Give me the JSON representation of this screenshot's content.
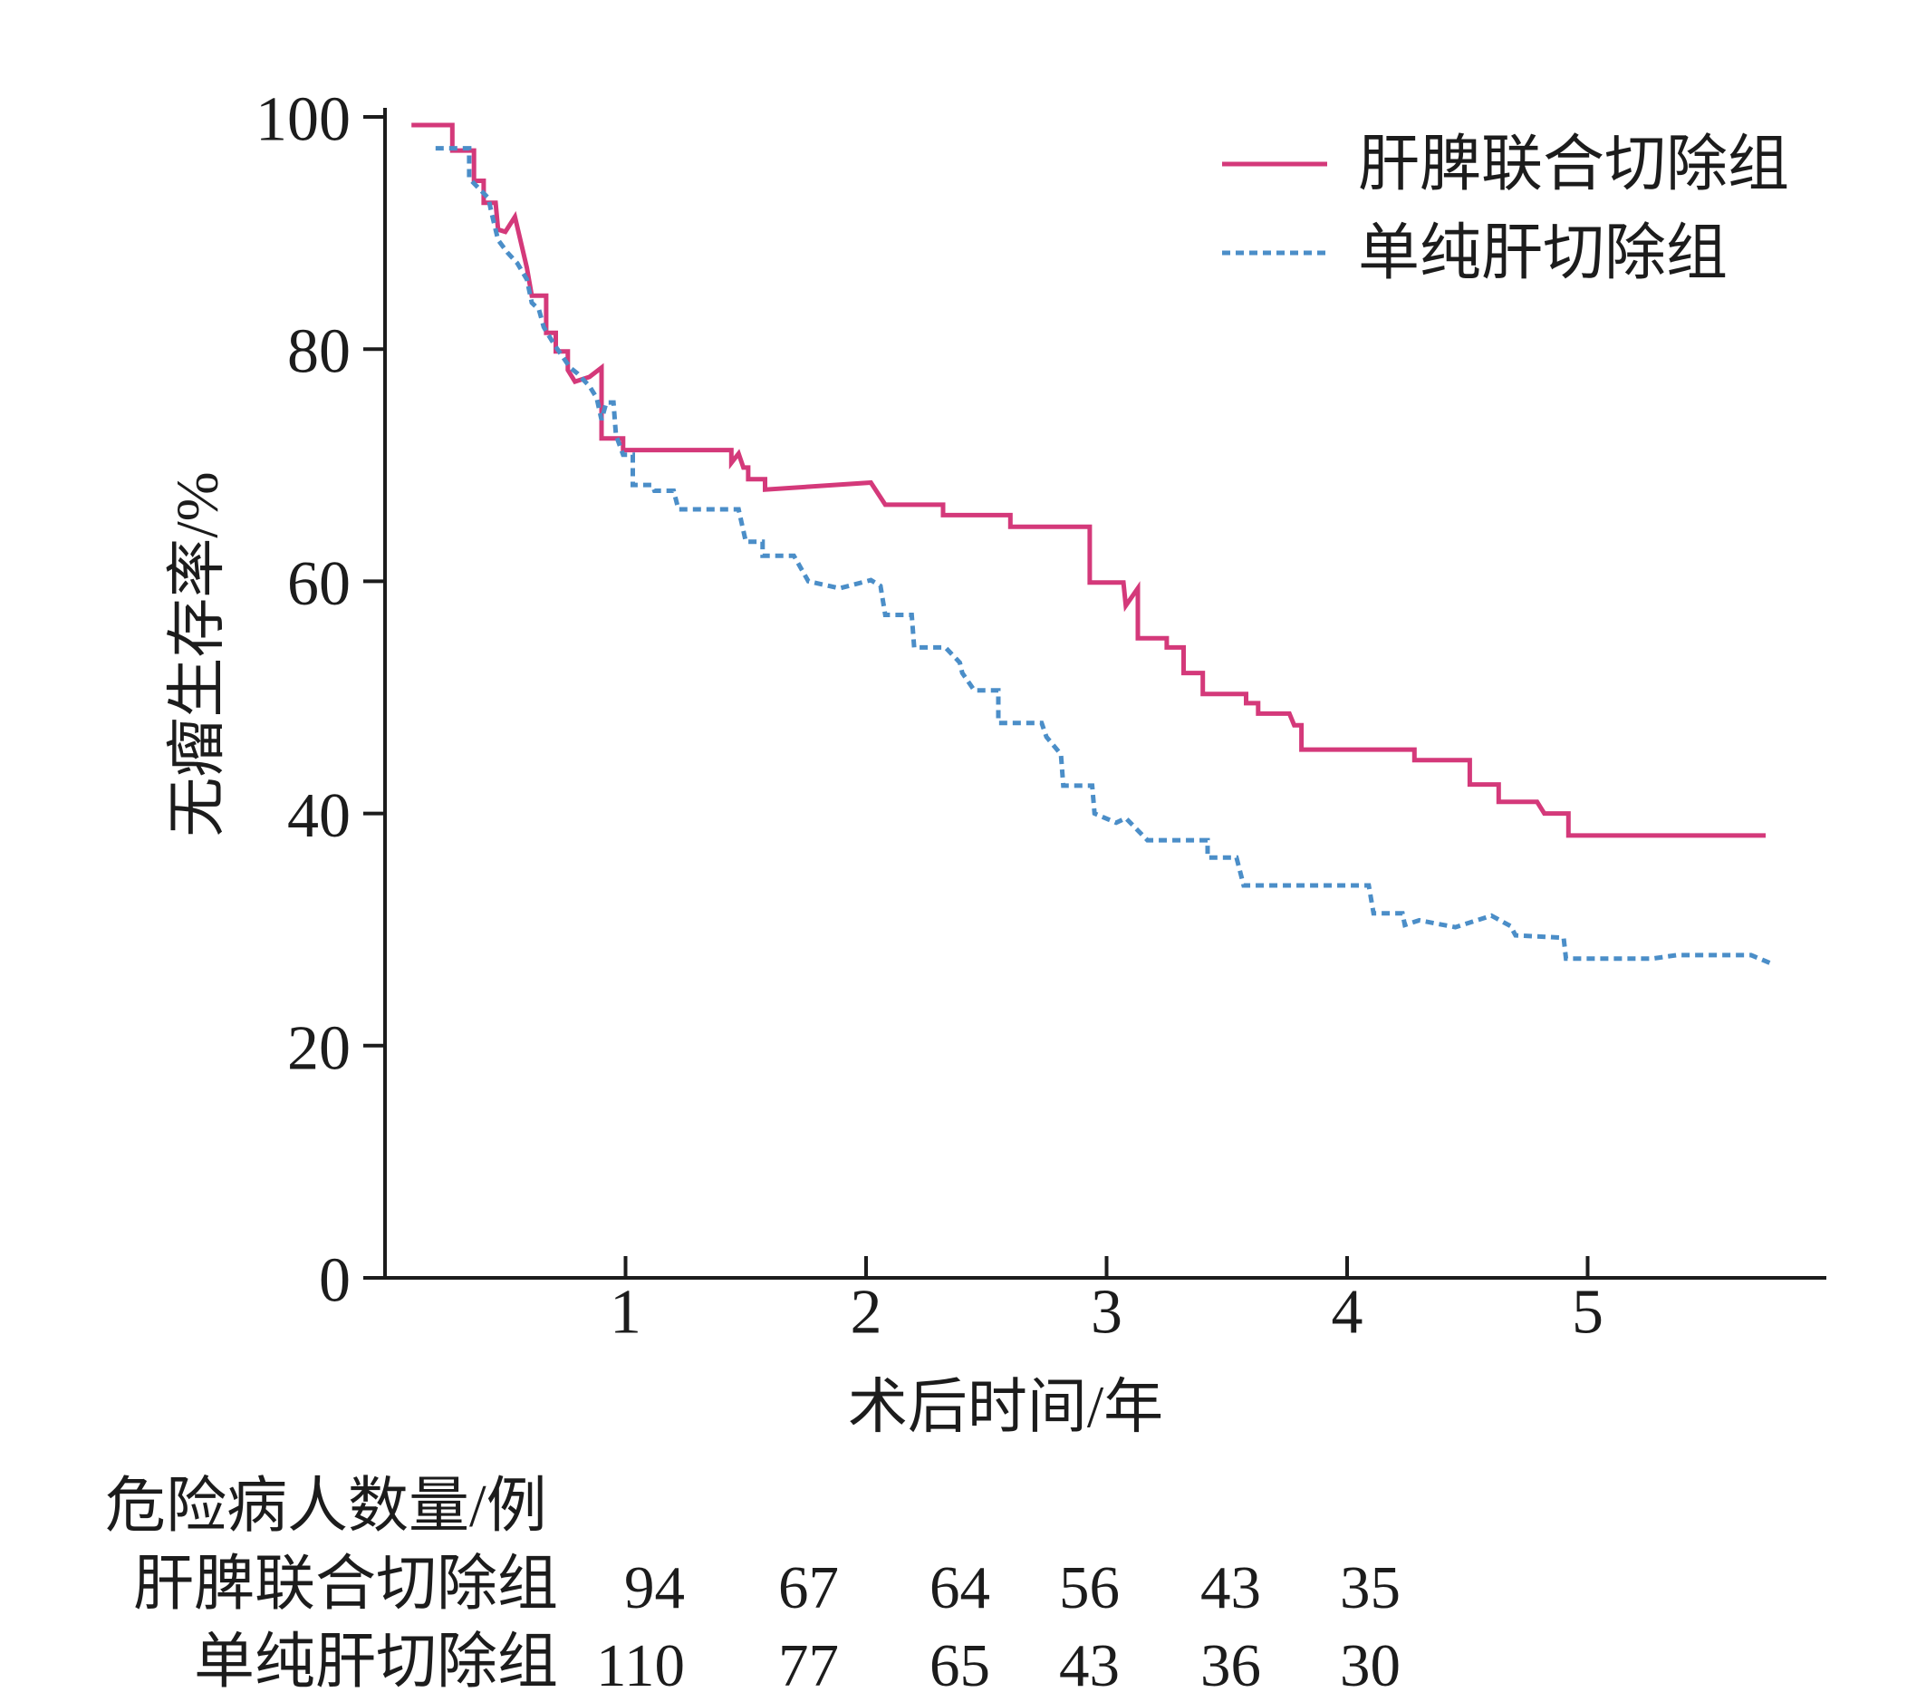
{
  "chart_data": {
    "type": "line",
    "xlabel": "术后时间/年",
    "ylabel": "无瘤生存率/%",
    "xlim": [
      0,
      6
    ],
    "ylim": [
      0,
      100
    ],
    "xticks": [
      1,
      2,
      3,
      4,
      5
    ],
    "yticks": [
      0,
      20,
      40,
      60,
      80,
      100
    ],
    "grid": false,
    "legend": "top-right",
    "series": [
      {
        "name": "肝脾联合切除组",
        "color": "#d4397a",
        "line_style": "solid",
        "points": [
          [
            0.11,
            99.3
          ],
          [
            0.28,
            99.3
          ],
          [
            0.28,
            97.1
          ],
          [
            0.37,
            97.1
          ],
          [
            0.37,
            94.5
          ],
          [
            0.41,
            94.5
          ],
          [
            0.41,
            92.6
          ],
          [
            0.46,
            92.6
          ],
          [
            0.47,
            90.3
          ],
          [
            0.5,
            90.1
          ],
          [
            0.54,
            91.4
          ],
          [
            0.59,
            87.0
          ],
          [
            0.61,
            84.6
          ],
          [
            0.67,
            84.6
          ],
          [
            0.67,
            81.4
          ],
          [
            0.71,
            81.4
          ],
          [
            0.71,
            79.8
          ],
          [
            0.76,
            79.8
          ],
          [
            0.76,
            78.2
          ],
          [
            0.79,
            77.2
          ],
          [
            0.85,
            77.6
          ],
          [
            0.9,
            78.4
          ],
          [
            0.9,
            72.3
          ],
          [
            0.99,
            72.3
          ],
          [
            0.99,
            71.3
          ],
          [
            1.44,
            71.3
          ],
          [
            1.44,
            70.2
          ],
          [
            1.47,
            71.0
          ],
          [
            1.49,
            69.8
          ],
          [
            1.51,
            69.8
          ],
          [
            1.51,
            68.8
          ],
          [
            1.58,
            68.8
          ],
          [
            1.58,
            67.9
          ],
          [
            2.02,
            68.5
          ],
          [
            2.08,
            66.6
          ],
          [
            2.32,
            66.6
          ],
          [
            2.32,
            65.7
          ],
          [
            2.6,
            65.7
          ],
          [
            2.6,
            64.7
          ],
          [
            2.93,
            64.7
          ],
          [
            2.93,
            59.9
          ],
          [
            3.07,
            59.9
          ],
          [
            3.08,
            57.9
          ],
          [
            3.13,
            59.4
          ],
          [
            3.13,
            55.1
          ],
          [
            3.25,
            55.1
          ],
          [
            3.25,
            54.3
          ],
          [
            3.32,
            54.3
          ],
          [
            3.32,
            52.1
          ],
          [
            3.4,
            52.1
          ],
          [
            3.4,
            50.3
          ],
          [
            3.58,
            50.3
          ],
          [
            3.58,
            49.5
          ],
          [
            3.63,
            49.5
          ],
          [
            3.63,
            48.6
          ],
          [
            3.76,
            48.6
          ],
          [
            3.78,
            47.6
          ],
          [
            3.81,
            47.6
          ],
          [
            3.81,
            45.5
          ],
          [
            4.28,
            45.5
          ],
          [
            4.28,
            44.6
          ],
          [
            4.51,
            44.6
          ],
          [
            4.51,
            42.5
          ],
          [
            4.63,
            42.5
          ],
          [
            4.63,
            41.0
          ],
          [
            4.79,
            41.0
          ],
          [
            4.82,
            40.0
          ],
          [
            4.92,
            40.0
          ],
          [
            4.92,
            38.1
          ],
          [
            5.74,
            38.1
          ]
        ]
      },
      {
        "name": "单纯肝切除组",
        "color": "#4b8ec8",
        "line_style": "dotted",
        "points": [
          [
            0.21,
            97.3
          ],
          [
            0.35,
            97.3
          ],
          [
            0.35,
            94.7
          ],
          [
            0.43,
            93.0
          ],
          [
            0.44,
            92.0
          ],
          [
            0.47,
            89.4
          ],
          [
            0.51,
            88.3
          ],
          [
            0.55,
            87.4
          ],
          [
            0.59,
            86.0
          ],
          [
            0.61,
            84.0
          ],
          [
            0.64,
            83.4
          ],
          [
            0.66,
            81.9
          ],
          [
            0.7,
            80.5
          ],
          [
            0.73,
            79.6
          ],
          [
            0.77,
            78.4
          ],
          [
            0.8,
            77.9
          ],
          [
            0.85,
            76.8
          ],
          [
            0.88,
            75.8
          ],
          [
            0.9,
            73.9
          ],
          [
            0.92,
            75.4
          ],
          [
            0.95,
            75.4
          ],
          [
            0.96,
            72.6
          ],
          [
            0.99,
            70.9
          ],
          [
            1.03,
            70.9
          ],
          [
            1.03,
            68.3
          ],
          [
            1.11,
            68.3
          ],
          [
            1.12,
            67.8
          ],
          [
            1.2,
            67.8
          ],
          [
            1.22,
            66.2
          ],
          [
            1.47,
            66.2
          ],
          [
            1.5,
            63.4
          ],
          [
            1.57,
            63.4
          ],
          [
            1.57,
            62.2
          ],
          [
            1.7,
            62.2
          ],
          [
            1.76,
            60.0
          ],
          [
            1.89,
            59.4
          ],
          [
            2.02,
            60.1
          ],
          [
            2.06,
            59.6
          ],
          [
            2.08,
            57.1
          ],
          [
            2.19,
            57.1
          ],
          [
            2.2,
            54.3
          ],
          [
            2.33,
            54.3
          ],
          [
            2.39,
            53.0
          ],
          [
            2.4,
            52.1
          ],
          [
            2.45,
            50.6
          ],
          [
            2.55,
            50.6
          ],
          [
            2.55,
            47.8
          ],
          [
            2.73,
            47.8
          ],
          [
            2.75,
            46.6
          ],
          [
            2.81,
            45.1
          ],
          [
            2.82,
            42.4
          ],
          [
            2.94,
            42.4
          ],
          [
            2.95,
            40.0
          ],
          [
            3.04,
            39.2
          ],
          [
            3.08,
            39.6
          ],
          [
            3.17,
            37.7
          ],
          [
            3.42,
            37.7
          ],
          [
            3.42,
            36.2
          ],
          [
            3.54,
            36.2
          ],
          [
            3.57,
            33.8
          ],
          [
            4.09,
            33.8
          ],
          [
            4.11,
            31.4
          ],
          [
            4.23,
            31.4
          ],
          [
            4.24,
            30.4
          ],
          [
            4.3,
            30.8
          ],
          [
            4.45,
            30.2
          ],
          [
            4.6,
            31.2
          ],
          [
            4.68,
            30.3
          ],
          [
            4.7,
            29.5
          ],
          [
            4.9,
            29.3
          ],
          [
            4.91,
            27.5
          ],
          [
            5.27,
            27.5
          ],
          [
            5.37,
            27.8
          ],
          [
            5.68,
            27.8
          ],
          [
            5.76,
            27.1
          ]
        ]
      }
    ]
  },
  "risk_table": {
    "title": "危险病人数量/例",
    "rows": [
      {
        "label": "肝脾联合切除组",
        "counts": [
          94,
          67,
          64,
          56,
          43,
          35
        ]
      },
      {
        "label": "单纯肝切除组",
        "counts": [
          110,
          77,
          65,
          43,
          36,
          30
        ]
      }
    ]
  }
}
